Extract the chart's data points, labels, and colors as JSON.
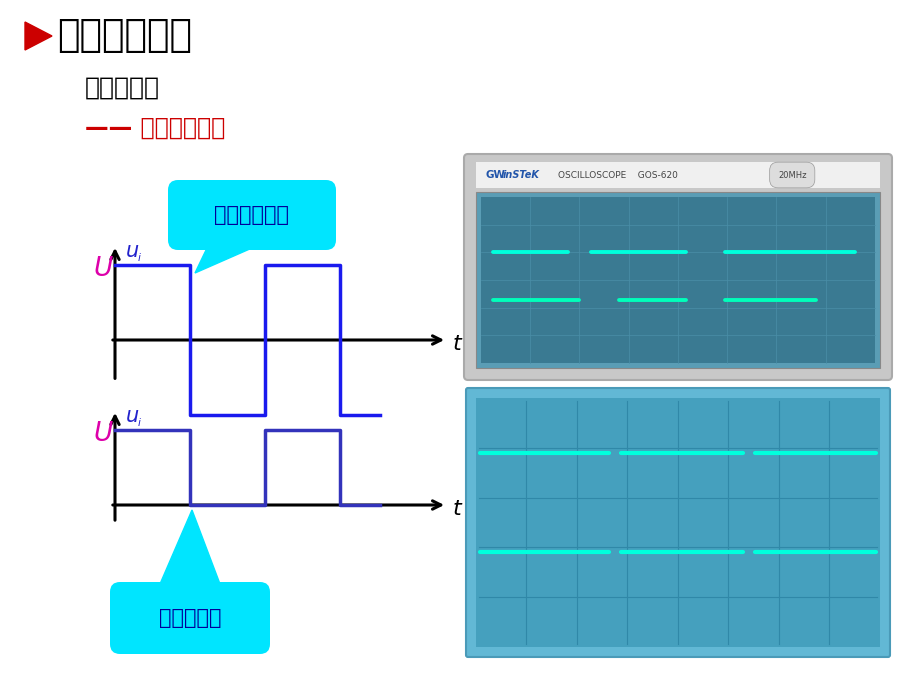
{
  "title": "如何得方波？",
  "subtitle": "信号发生器",
  "line3": "—— 加直流偏移！",
  "label_no_dc": "不加直流偏移",
  "label_dc": "加直流偏移",
  "bg_color": "#ffffff",
  "title_color": "#000000",
  "red_color": "#cc0000",
  "wave_color_top": "#1a1aee",
  "wave_color_bot": "#3333bb",
  "axis_color": "#000000",
  "U_color": "#dd00aa",
  "ui_color": "#2222cc",
  "callout_fill": "#00e5ff",
  "callout_text": "#000099",
  "osc1_bg": "#6aacb8",
  "osc1_screen": "#4a8fa0",
  "osc2_bg": "#5ab0c8",
  "osc2_screen": "#3a9ab8",
  "sig_color": "#00ffcc",
  "grid_color": "#3a8899"
}
